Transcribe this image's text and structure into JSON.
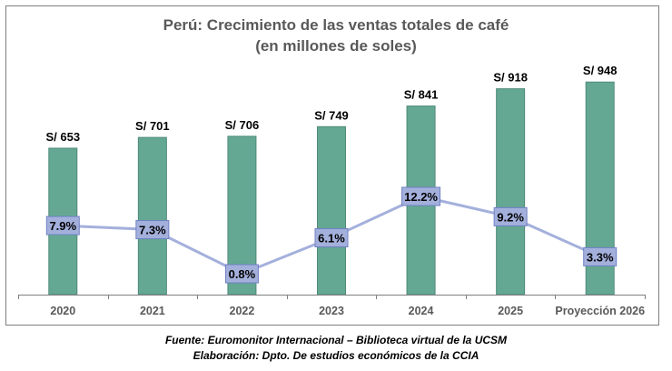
{
  "chart_data": {
    "type": "bar+line",
    "title": [
      "Perú: Crecimiento de las ventas totales de café",
      "(en millones de soles)"
    ],
    "categories": [
      "2020",
      "2021",
      "2022",
      "2023",
      "2024",
      "2025",
      "Proyección 2026"
    ],
    "series": [
      {
        "type": "bar",
        "values": [
          653,
          701,
          706,
          749,
          841,
          918,
          948
        ],
        "labels": [
          "S/ 653",
          "S/ 701",
          "S/ 706",
          "S/ 749",
          "S/ 841",
          "S/ 918",
          "S/ 948"
        ],
        "color": "#64A893"
      },
      {
        "type": "line",
        "values": [
          7.9,
          7.3,
          0.8,
          6.1,
          12.2,
          9.2,
          3.3
        ],
        "labels": [
          "7.9%",
          "7.3%",
          "0.8%",
          "6.1%",
          "12.2%",
          "9.2%",
          "3.3%"
        ],
        "color": "#A4B0DC"
      }
    ],
    "grid": false,
    "legend": "none"
  },
  "footer": {
    "source": "Fuente: Euromonitor Internacional – Biblioteca virtual de la UCSM",
    "credit": "Elaboración: Dpto. De estudios económicos de la CCIA"
  }
}
